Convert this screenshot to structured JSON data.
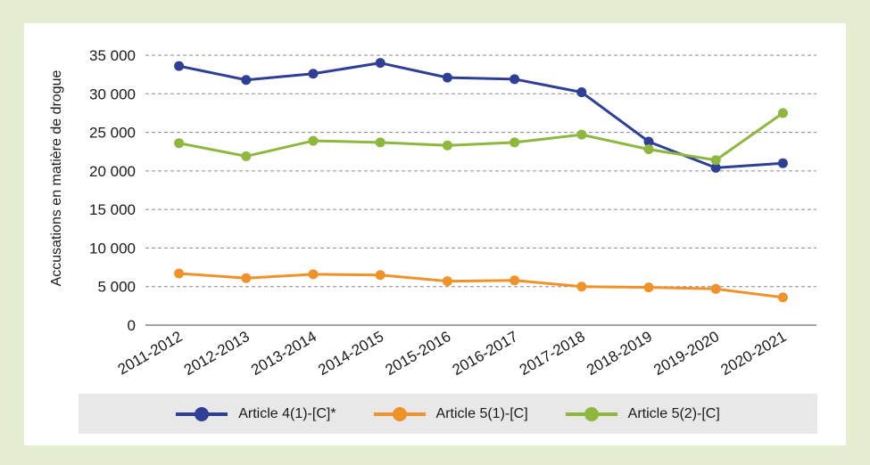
{
  "chart_data": {
    "type": "line",
    "title": "",
    "xlabel": "",
    "ylabel": "Accusations en matière de drogue",
    "categories": [
      "2011-2012",
      "2012-2013",
      "2013-2014",
      "2014-2015",
      "2015-2016",
      "2016-2017",
      "2017-2018",
      "2018-2019",
      "2019-2020",
      "2020-2021"
    ],
    "ylim": [
      0,
      35000
    ],
    "yticks": [
      0,
      5000,
      10000,
      15000,
      20000,
      25000,
      30000,
      35000
    ],
    "ytick_labels": [
      "0",
      "5 000",
      "10 000",
      "15 000",
      "20 000",
      "25 000",
      "30 000",
      "35 000"
    ],
    "grid": "horizontal dashed",
    "legend_position": "bottom",
    "series": [
      {
        "name": "Article 4(1)-[C]*",
        "color": "#2e3f95",
        "values": [
          33600,
          31800,
          32600,
          34000,
          32100,
          31900,
          30200,
          23800,
          20400,
          21000
        ]
      },
      {
        "name": "Article 5(1)-[C]",
        "color": "#f0922a",
        "values": [
          6700,
          6100,
          6600,
          6500,
          5700,
          5800,
          5000,
          4900,
          4700,
          3600
        ]
      },
      {
        "name": "Article 5(2)-[C]",
        "color": "#8db83d",
        "values": [
          23600,
          21900,
          23900,
          23700,
          23300,
          23700,
          24700,
          22800,
          21400,
          27500
        ]
      }
    ]
  }
}
